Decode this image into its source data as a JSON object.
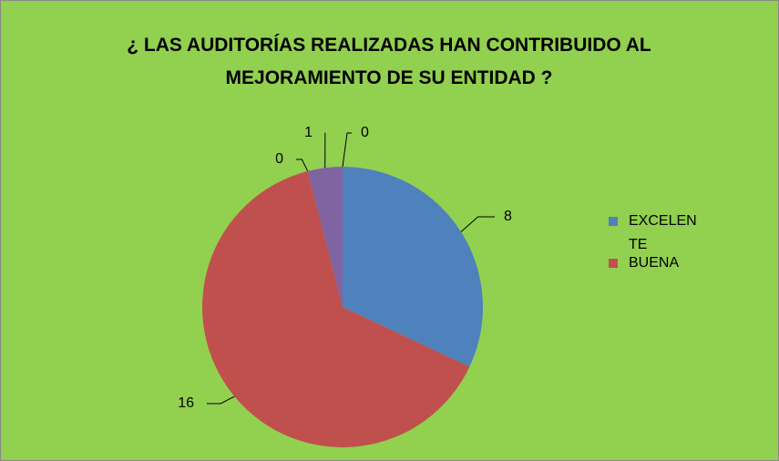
{
  "chart_data": {
    "type": "pie",
    "title": "¿ LAS AUDITORÍAS REALIZADAS HAN CONTRIBUIDO AL MEJORAMIENTO DE SU ENTIDAD ?",
    "categories": [
      "EXCELENTE",
      "BUENA",
      null,
      null,
      null
    ],
    "values": [
      8,
      16,
      0,
      1,
      0
    ],
    "colors": [
      "#4f81bd",
      "#c0504d",
      "#9bbb59",
      "#8064a2",
      "#4bacc6"
    ],
    "legend": "right"
  }
}
